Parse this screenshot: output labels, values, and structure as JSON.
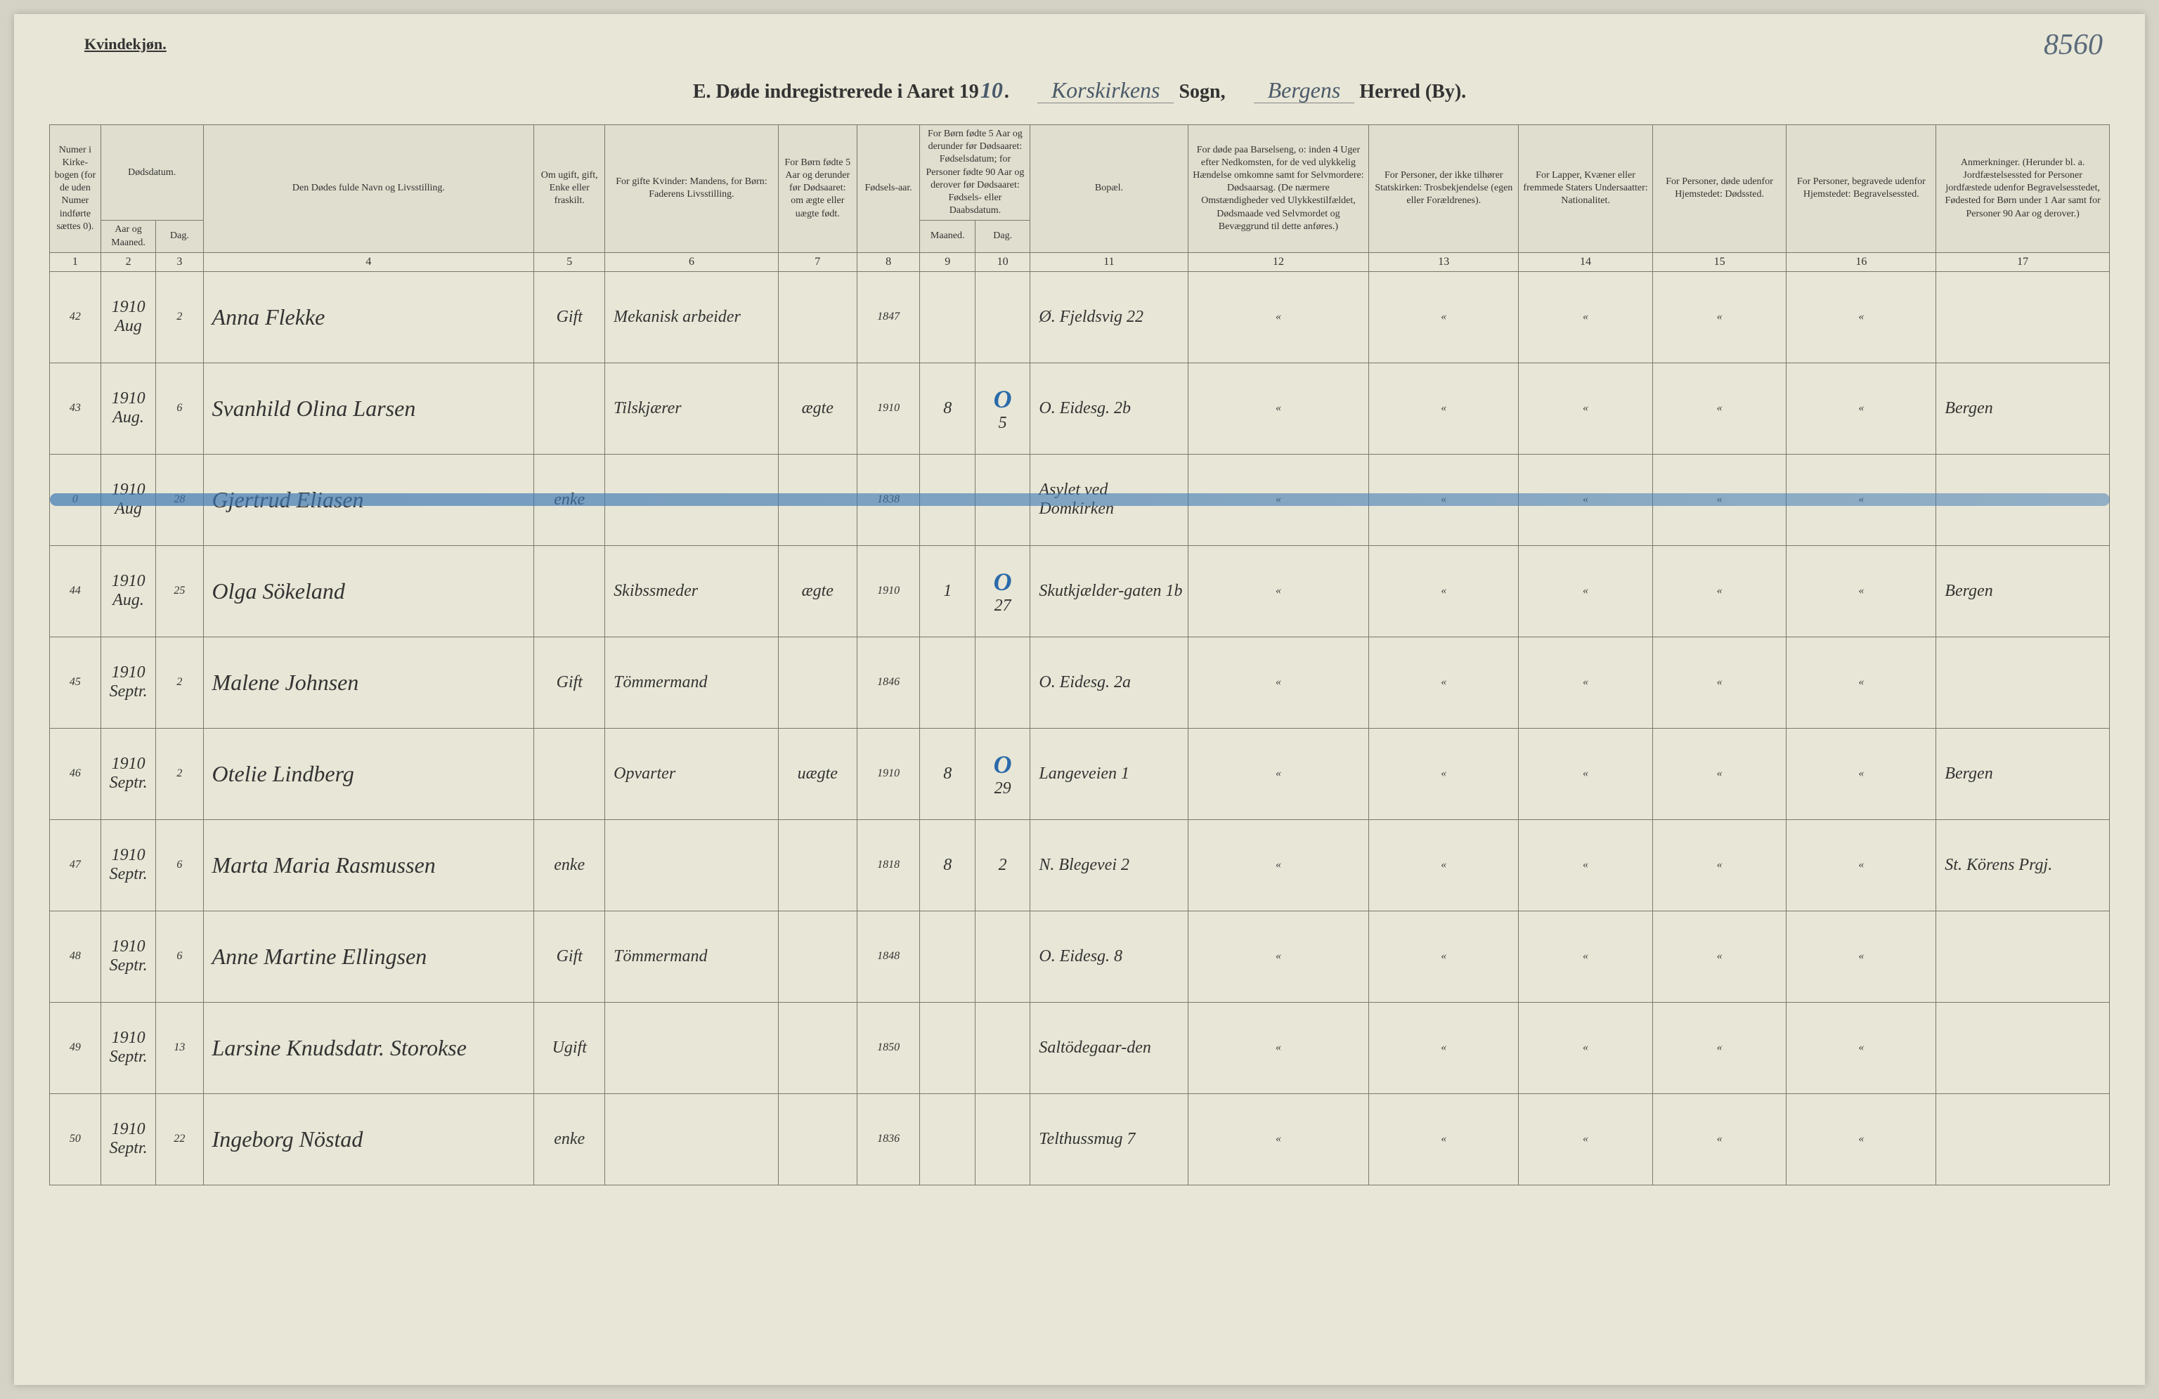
{
  "page": {
    "background_color": "#e8e6d6",
    "border_color": "#7a7a6a",
    "handwriting_color": "#3a4a5a",
    "blue_pencil_color": "#2a6aaa"
  },
  "top": {
    "left_label": "Kvindekjøn.",
    "page_number": "8560",
    "title_prefix": "E.  Døde indregistrerede i Aaret 19",
    "title_year_overwrite": "10",
    "title_dot": ".",
    "sogn_hand": "Korskirkens",
    "sogn_label": "Sogn,",
    "herred_hand": "Bergens",
    "herred_label": "Herred (By)."
  },
  "headers": {
    "c1": "Numer i Kirke-bogen (for de uden Numer indførte sættes 0).",
    "c2_3": "Dødsdatum.",
    "c2": "Aar og Maaned.",
    "c3": "Dag.",
    "c4": "Den Dødes fulde Navn og Livsstilling.",
    "c5": "Om ugift, gift, Enke eller fraskilt.",
    "c6": "For gifte Kvinder: Mandens, for Børn: Faderens Livsstilling.",
    "c7": "For Børn fødte 5 Aar og derunder før Dødsaaret: om ægte eller uægte født.",
    "c8": "Fødsels-aar.",
    "c9_10": "For Børn fødte 5 Aar og derunder før Dødsaaret: Fødselsdatum; for Personer fødte 90 Aar og derover før Dødsaaret: Fødsels- eller Daabsdatum.",
    "c9": "Maaned.",
    "c10": "Dag.",
    "c11": "Bopæl.",
    "c12": "For døde paa Barselseng, o: inden 4 Uger efter Nedkomsten, for de ved ulykkelig Hændelse omkomne samt for Selvmordere: Dødsaarsag. (De nærmere Omstændigheder ved Ulykkestilfældet, Dødsmaade ved Selvmordet og Bevæggrund til dette anføres.)",
    "c13": "For Personer, der ikke tilhører Statskirken: Trosbekjendelse (egen eller Forældrenes).",
    "c14": "For Lapper, Kvæner eller fremmede Staters Undersaatter: Nationalitet.",
    "c15": "For Personer, døde udenfor Hjemstedet: Dødssted.",
    "c16": "For Personer, begravede udenfor Hjemstedet: Begravelsessted.",
    "c17": "Anmerkninger. (Herunder bl. a. Jordfæstelsessted for Personer jordfæstede udenfor Begravelsesstedet, Fødested for Børn under 1 Aar samt for Personer 90 Aar og derover.)"
  },
  "colnums": [
    "1",
    "2",
    "3",
    "4",
    "5",
    "6",
    "7",
    "8",
    "9",
    "10",
    "11",
    "12",
    "13",
    "14",
    "15",
    "16",
    "17"
  ],
  "rows": [
    {
      "num": "42",
      "year": "1910",
      "month": "Aug",
      "day": "2",
      "name": "Anna Flekke",
      "status": "Gift",
      "occupation": "Mekanisk arbeider",
      "aegte": "",
      "birth_year": "1847",
      "b_month": "",
      "b_day": "",
      "residence": "Ø. Fjeldsvig 22",
      "c12": "«",
      "c13": "«",
      "c14": "«",
      "c15": "«",
      "c16": "«",
      "c17": ""
    },
    {
      "num": "43",
      "year": "1910",
      "month": "Aug.",
      "day": "6",
      "name": "Svanhild Olina Larsen",
      "status": "",
      "occupation": "Tilskjærer",
      "aegte": "ægte",
      "birth_year": "1910",
      "b_month": "8",
      "b_day": "5",
      "blue_O": true,
      "residence": "O. Eidesg. 2b",
      "c12": "«",
      "c13": "«",
      "c14": "«",
      "c15": "«",
      "c16": "«",
      "c17": "Bergen"
    },
    {
      "num": "0",
      "year": "1910",
      "month": "Aug",
      "day": "28",
      "name": "Gjertrud Eliasen",
      "status": "enke",
      "occupation": "",
      "aegte": "",
      "birth_year": "1838",
      "b_month": "",
      "b_day": "",
      "residence": "Asylet ved Domkirken",
      "c12": "«",
      "c13": "«",
      "c14": "«",
      "c15": "«",
      "c16": "«",
      "c17": "",
      "struck": true
    },
    {
      "num": "44",
      "year": "1910",
      "month": "Aug.",
      "day": "25",
      "name": "Olga Sökeland",
      "status": "",
      "occupation": "Skibssmeder",
      "aegte": "ægte",
      "birth_year": "1910",
      "b_month": "1",
      "b_day": "27",
      "blue_O": true,
      "residence": "Skutkjælder-gaten 1b",
      "c12": "«",
      "c13": "«",
      "c14": "«",
      "c15": "«",
      "c16": "«",
      "c17": "Bergen"
    },
    {
      "num": "45",
      "year": "1910",
      "month": "Septr.",
      "day": "2",
      "name": "Malene Johnsen",
      "status": "Gift",
      "occupation": "Tömmermand",
      "aegte": "",
      "birth_year": "1846",
      "b_month": "",
      "b_day": "",
      "residence": "O. Eidesg. 2a",
      "c12": "«",
      "c13": "«",
      "c14": "«",
      "c15": "«",
      "c16": "«",
      "c17": ""
    },
    {
      "num": "46",
      "year": "1910",
      "month": "Septr.",
      "day": "2",
      "name": "Otelie Lindberg",
      "status": "",
      "occupation": "Opvarter",
      "aegte": "uægte",
      "birth_year": "1910",
      "b_month": "8",
      "b_day": "29",
      "blue_O": true,
      "residence": "Langeveien 1",
      "c12": "«",
      "c13": "«",
      "c14": "«",
      "c15": "«",
      "c16": "«",
      "c17": "Bergen"
    },
    {
      "num": "47",
      "year": "1910",
      "month": "Septr.",
      "day": "6",
      "name": "Marta Maria Rasmussen",
      "status": "enke",
      "occupation": "",
      "aegte": "",
      "birth_year": "1818",
      "b_month": "8",
      "b_day": "2",
      "residence": "N. Blegevei 2",
      "c12": "«",
      "c13": "«",
      "c14": "«",
      "c15": "«",
      "c16": "«",
      "c17": "St. Körens Prgj."
    },
    {
      "num": "48",
      "year": "1910",
      "month": "Septr.",
      "day": "6",
      "name": "Anne Martine Ellingsen",
      "status": "Gift",
      "occupation": "Tömmermand",
      "aegte": "",
      "birth_year": "1848",
      "b_month": "",
      "b_day": "",
      "residence": "O. Eidesg. 8",
      "c12": "«",
      "c13": "«",
      "c14": "«",
      "c15": "«",
      "c16": "«",
      "c17": ""
    },
    {
      "num": "49",
      "year": "1910",
      "month": "Septr.",
      "day": "13",
      "name": "Larsine Knudsdatr. Storokse",
      "status": "Ugift",
      "occupation": "",
      "aegte": "",
      "birth_year": "1850",
      "b_month": "",
      "b_day": "",
      "residence": "Saltödegaar-den",
      "c12": "«",
      "c13": "«",
      "c14": "«",
      "c15": "«",
      "c16": "«",
      "c17": ""
    },
    {
      "num": "50",
      "year": "1910",
      "month": "Septr.",
      "day": "22",
      "name": "Ingeborg Nöstad",
      "status": "enke",
      "occupation": "",
      "aegte": "",
      "birth_year": "1836",
      "b_month": "",
      "b_day": "",
      "residence": "Telthussmug 7",
      "c12": "«",
      "c13": "«",
      "c14": "«",
      "c15": "«",
      "c16": "«",
      "c17": ""
    }
  ]
}
